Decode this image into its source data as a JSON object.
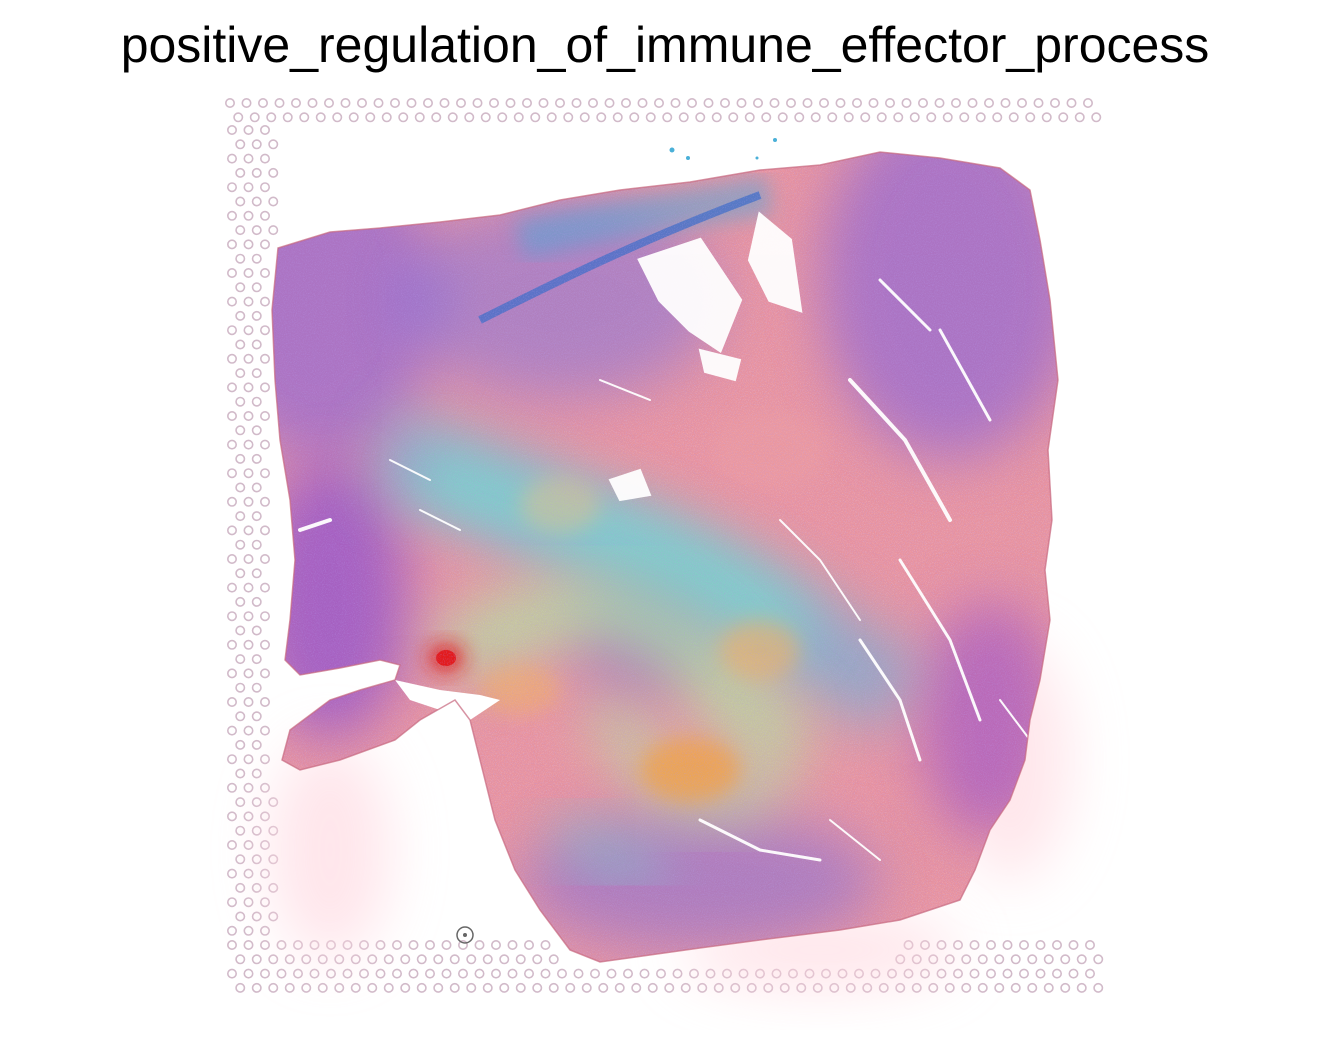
{
  "title": "positive_regulation_of_immune_effector_process",
  "colors": {
    "tissue_pink": "#e8909a",
    "tissue_purple": "#7a4fd6",
    "tissue_blue": "#4a7fe0",
    "hot_red": "#e31a1c",
    "hot_orange": "#f4a040",
    "mid_green": "#9ef0a8",
    "mid_cyan": "#5fe8d6",
    "spot_grid": "#cdb3c4",
    "background": "#ffffff"
  }
}
